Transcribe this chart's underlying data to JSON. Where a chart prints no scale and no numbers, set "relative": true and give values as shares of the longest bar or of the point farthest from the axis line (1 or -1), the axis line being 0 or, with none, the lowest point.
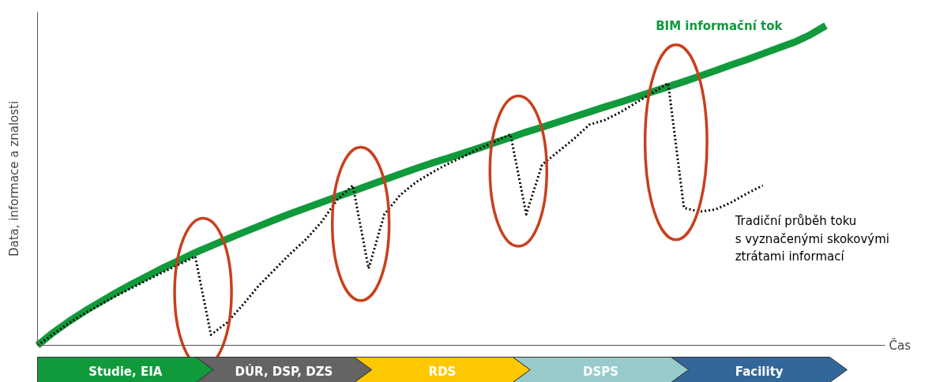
{
  "chart_data": {
    "type": "line",
    "relative": true,
    "xlabel": "Čas",
    "ylabel": "Data, informace a znalosti",
    "tick_labels": false,
    "grid": false,
    "legend": false,
    "categories": [
      null,
      null,
      null,
      null,
      null,
      null,
      null,
      null,
      null,
      null,
      null,
      null,
      null,
      null,
      null,
      null,
      null,
      null,
      null,
      null,
      null,
      null,
      null,
      null,
      null,
      null,
      null,
      null,
      null,
      null,
      null,
      null,
      null,
      null,
      null,
      null,
      null,
      null,
      null,
      null,
      null,
      null,
      null,
      null,
      null,
      null,
      null,
      null,
      null,
      null,
      null
    ],
    "annotations": [
      "Studie, EIA",
      "DÚR, DSP, DZS",
      "RDS",
      "DSPS",
      "Facility"
    ],
    "series": [
      {
        "name": "BIM informační tok",
        "color": "#119a3c",
        "line_style": "solid",
        "values": [
          0,
          0.04,
          0.075,
          0.107,
          0.136,
          0.165,
          0.192,
          0.217,
          0.243,
          0.266,
          0.29,
          0.311,
          0.332,
          0.352,
          0.372,
          0.392,
          0.411,
          0.429,
          0.447,
          0.465,
          0.482,
          0.5,
          0.518,
          0.536,
          0.553,
          0.57,
          0.585,
          0.601,
          0.617,
          0.634,
          0.65,
          0.667,
          0.682,
          0.698,
          0.714,
          0.73,
          0.746,
          0.761,
          0.777,
          0.793,
          0.809,
          0.825,
          0.842,
          0.859,
          0.877,
          0.894,
          0.912,
          0.93,
          0.948,
          0.971,
          1.0
        ]
      },
      {
        "name": "Tradiční průběh toku\ns vyznačenými skokovými\nztrátami informací",
        "color": "#000000",
        "line_style": "dotted",
        "values": [
          0,
          0.035,
          0.07,
          0.1,
          0.128,
          0.155,
          0.18,
          0.205,
          0.23,
          0.253,
          0.278,
          0.033,
          0.07,
          0.125,
          0.185,
          0.235,
          0.285,
          0.33,
          0.385,
          0.455,
          0.5,
          0.24,
          0.41,
          0.47,
          0.51,
          0.54,
          0.567,
          0.59,
          0.615,
          0.637,
          0.66,
          0.41,
          0.565,
          0.605,
          0.645,
          0.69,
          0.705,
          0.73,
          0.76,
          0.79,
          0.82,
          0.43,
          0.418,
          0.425,
          0.447,
          0.475,
          0.5,
          null,
          null,
          null,
          null
        ]
      }
    ]
  }
}
